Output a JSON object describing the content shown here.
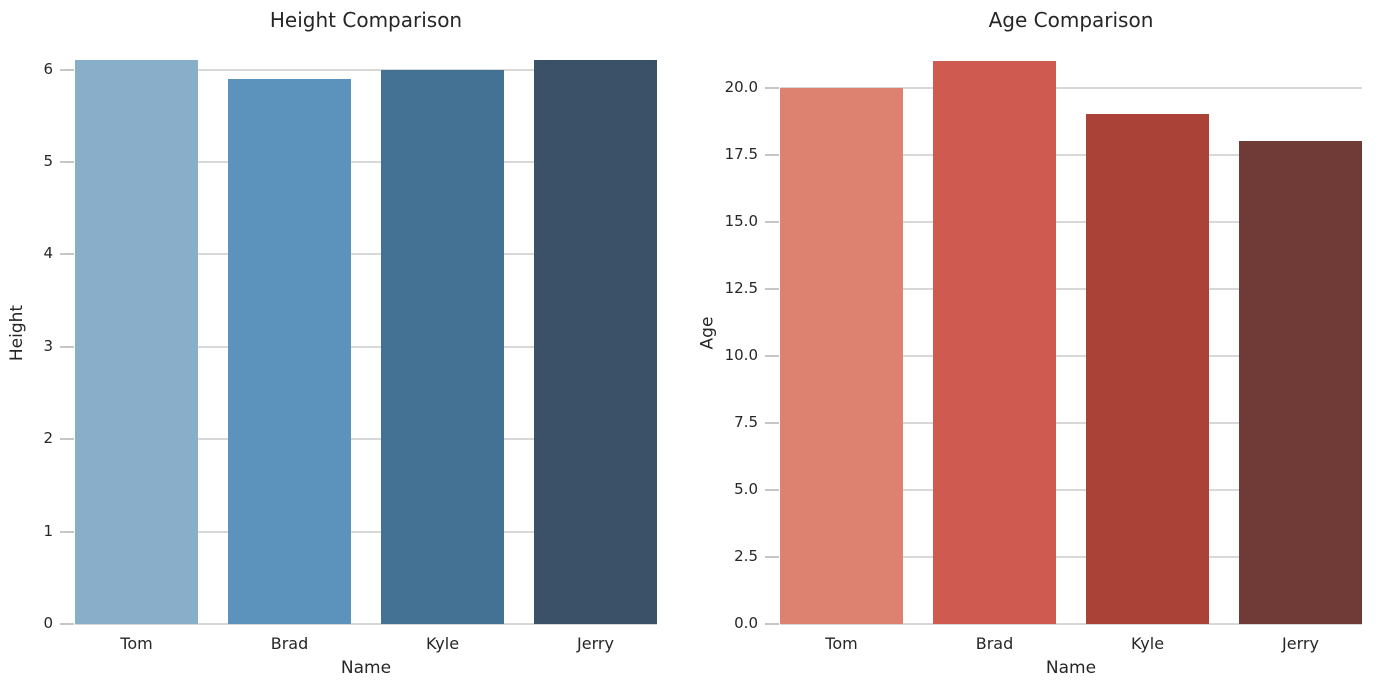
{
  "figure": {
    "background_color": "#ffffff",
    "text_color": "#262626",
    "grid_color": "#d8d8d8",
    "tick_mark_color": "#c6c6c6"
  },
  "chart_data": [
    {
      "type": "bar",
      "title": "Height Comparison",
      "xlabel": "Name",
      "ylabel": "Height",
      "categories": [
        "Tom",
        "Brad",
        "Kyle",
        "Jerry"
      ],
      "values": [
        6.1,
        5.9,
        6.0,
        6.1
      ],
      "bar_colors": [
        "#88AECA",
        "#5B93BD",
        "#447295",
        "#3B5168"
      ],
      "palette": "Blues_d",
      "ylim": [
        0,
        6.3
      ],
      "ytick_values": [
        0,
        1,
        2,
        3,
        4,
        5,
        6
      ],
      "ytick_labels": [
        "0",
        "1",
        "2",
        "3",
        "4",
        "5",
        "6"
      ],
      "grid": true,
      "legend": "none"
    },
    {
      "type": "bar",
      "title": "Age Comparison",
      "xlabel": "Name",
      "ylabel": "Age",
      "categories": [
        "Tom",
        "Brad",
        "Kyle",
        "Jerry"
      ],
      "values": [
        20,
        21,
        19,
        18
      ],
      "bar_colors": [
        "#DD8270",
        "#CE5A50",
        "#AB4238",
        "#703A36"
      ],
      "palette": "Reds_d",
      "ylim": [
        0,
        21.7
      ],
      "ytick_values": [
        0,
        2.5,
        5,
        7.5,
        10,
        12.5,
        15,
        17.5,
        20
      ],
      "ytick_labels": [
        "0.0",
        "2.5",
        "5.0",
        "7.5",
        "10.0",
        "12.5",
        "15.0",
        "17.5",
        "20.0"
      ],
      "grid": true,
      "legend": "none"
    }
  ]
}
